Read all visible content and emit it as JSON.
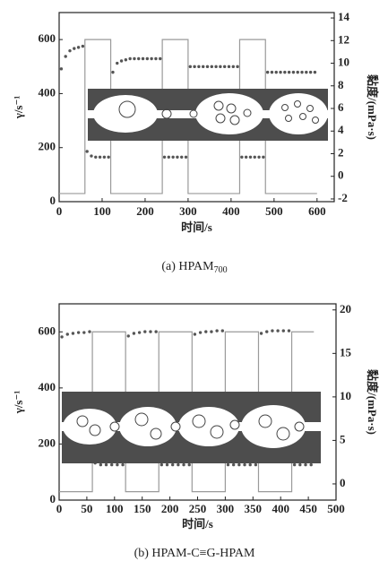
{
  "charts": [
    {
      "chart_data": {
        "type": "line",
        "xlabel": "时间/s",
        "ylabel": "γ/s⁻¹",
        "y2label": "黏度/(mPa·s)",
        "caption": "(a) HPAM",
        "caption_sub": "700",
        "xlim": [
          0,
          640
        ],
        "xticks": [
          0,
          100,
          200,
          300,
          400,
          500,
          600
        ],
        "ylim": [
          0,
          700
        ],
        "yticks": [
          0,
          200,
          400,
          600
        ],
        "y2lim": [
          -2.24,
          14.48
        ],
        "y2ticks": [
          -2,
          0,
          2,
          4,
          6,
          8,
          10,
          12,
          14
        ],
        "series": [
          {
            "style": "line",
            "color": "#9a9a9a",
            "axis": "y",
            "x": [
              0,
              60,
              60,
              120,
              120,
              240,
              240,
              300,
              300,
              420,
              420,
              480,
              480,
              600
            ],
            "values": [
              30,
              30,
              600,
              600,
              30,
              30,
              600,
              600,
              30,
              30,
              600,
              600,
              30,
              30
            ]
          },
          {
            "style": "markers",
            "color": "#555555",
            "axis": "y2",
            "x": [
              5,
              15,
              25,
              35,
              45,
              55,
              65,
              75,
              85,
              95,
              105,
              115,
              125,
              135,
              145,
              155,
              165,
              175,
              185,
              195,
              205,
              215,
              225,
              235,
              245,
              255,
              265,
              275,
              285,
              295,
              305,
              315,
              325,
              335,
              345,
              355,
              365,
              375,
              385,
              395,
              405,
              415,
              425,
              435,
              445,
              455,
              465,
              475,
              485,
              495,
              505,
              515,
              525,
              535,
              545,
              555,
              565,
              575,
              585,
              595
            ],
            "values": [
              9.5,
              10.6,
              11.1,
              11.3,
              11.4,
              11.5,
              2.2,
              1.8,
              1.7,
              1.7,
              1.7,
              1.7,
              9.2,
              10.0,
              10.2,
              10.3,
              10.4,
              10.4,
              10.4,
              10.4,
              10.4,
              10.4,
              10.4,
              10.4,
              1.7,
              1.7,
              1.7,
              1.7,
              1.7,
              1.7,
              9.7,
              9.7,
              9.7,
              9.7,
              9.7,
              9.7,
              9.7,
              9.7,
              9.7,
              9.7,
              9.7,
              9.7,
              1.7,
              1.7,
              1.7,
              1.7,
              1.7,
              1.7,
              9.2,
              9.2,
              9.2,
              9.2,
              9.2,
              9.2,
              9.2,
              9.2,
              9.2,
              9.2,
              9.2,
              9.2
            ]
          }
        ]
      }
    },
    {
      "chart_data": {
        "type": "line",
        "xlabel": "时间/s",
        "ylabel": "γ/s⁻¹",
        "y2label": "黏度/(mPa·s)",
        "caption": "(b) HPAM-C≡G-HPAM",
        "xlim": [
          0,
          500
        ],
        "xticks": [
          0,
          50,
          100,
          150,
          200,
          250,
          300,
          350,
          400,
          450,
          500
        ],
        "ylim": [
          0,
          700
        ],
        "yticks": [
          0,
          200,
          400,
          600
        ],
        "y2lim": [
          -1.86,
          20.7
        ],
        "y2ticks": [
          0,
          5,
          10,
          15,
          20
        ],
        "series": [
          {
            "style": "line",
            "color": "#9a9a9a",
            "axis": "y",
            "x": [
              0,
              60,
              60,
              120,
              120,
              180,
              180,
              240,
              240,
              300,
              300,
              360,
              360,
              420,
              420,
              460
            ],
            "values": [
              30,
              30,
              600,
              600,
              30,
              30,
              600,
              600,
              30,
              30,
              600,
              600,
              30,
              30,
              600,
              600
            ]
          },
          {
            "style": "markers",
            "color": "#555555",
            "axis": "y2",
            "x": [
              5,
              15,
              25,
              35,
              45,
              55,
              65,
              75,
              85,
              95,
              105,
              115,
              125,
              135,
              145,
              155,
              165,
              175,
              185,
              195,
              205,
              215,
              225,
              235,
              245,
              255,
              265,
              275,
              285,
              295,
              305,
              315,
              325,
              335,
              345,
              355,
              365,
              375,
              385,
              395,
              405,
              415,
              425,
              435,
              445,
              455
            ],
            "values": [
              16.9,
              17.2,
              17.3,
              17.4,
              17.4,
              17.5,
              2.4,
              2.2,
              2.2,
              2.2,
              2.2,
              2.2,
              17.0,
              17.3,
              17.4,
              17.5,
              17.5,
              17.5,
              2.2,
              2.2,
              2.2,
              2.2,
              2.2,
              2.2,
              17.2,
              17.4,
              17.5,
              17.5,
              17.6,
              17.6,
              2.2,
              2.2,
              2.2,
              2.2,
              2.2,
              2.2,
              17.3,
              17.5,
              17.6,
              17.6,
              17.6,
              17.6,
              2.2,
              2.2,
              2.2,
              2.2
            ]
          }
        ]
      }
    }
  ]
}
